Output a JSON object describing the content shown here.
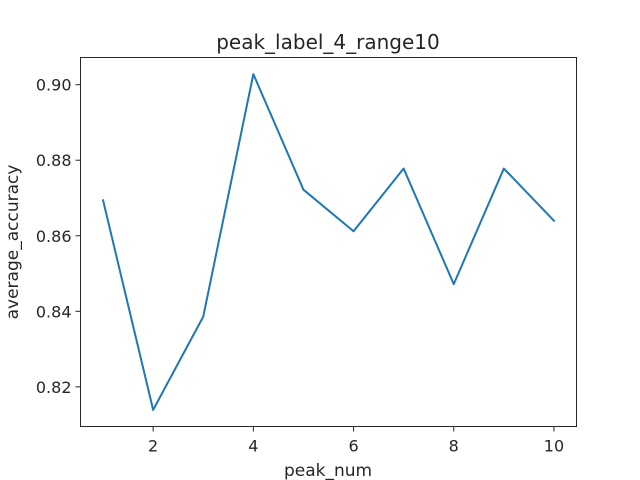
{
  "chart_data": {
    "type": "line",
    "title": "peak_label_4_range10",
    "xlabel": "peak_num",
    "ylabel": "average_accuracy",
    "x": [
      1,
      2,
      3,
      4,
      5,
      6,
      7,
      8,
      9,
      10
    ],
    "series": [
      {
        "values": [
          0.8694,
          0.8139,
          0.8386,
          0.9028,
          0.8722,
          0.8612,
          0.8778,
          0.8472,
          0.8778,
          0.864
        ],
        "color": "#1f77b4"
      }
    ],
    "xlim": [
      0.55,
      10.45
    ],
    "ylim": [
      0.8095,
      0.9072
    ],
    "xticks": [
      2,
      4,
      6,
      8,
      10
    ],
    "xtick_labels": [
      "2",
      "4",
      "6",
      "8",
      "10"
    ],
    "yticks": [
      0.82,
      0.84,
      0.86,
      0.88,
      0.9
    ],
    "ytick_labels": [
      "0.82",
      "0.84",
      "0.86",
      "0.88",
      "0.90"
    ],
    "grid": false,
    "legend": "none"
  }
}
